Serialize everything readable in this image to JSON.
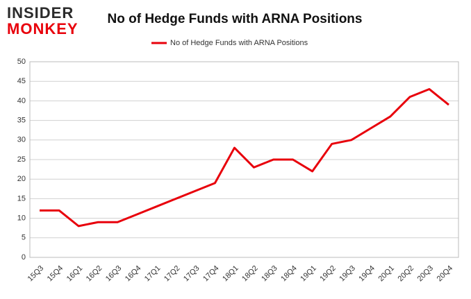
{
  "logo": {
    "line1": "INSIDER",
    "line2": "MONKEY"
  },
  "chart_data": {
    "type": "line",
    "title": "No of Hedge Funds with ARNA Positions",
    "categories": [
      "15Q3",
      "15Q4",
      "16Q1",
      "16Q2",
      "16Q3",
      "16Q4",
      "17Q1",
      "17Q2",
      "17Q3",
      "17Q4",
      "18Q1",
      "18Q2",
      "18Q3",
      "18Q4",
      "19Q1",
      "19Q2",
      "19Q3",
      "19Q4",
      "20Q1",
      "20Q2",
      "20Q3",
      "20Q4"
    ],
    "series": [
      {
        "name": "No of Hedge Funds with ARNA Positions",
        "color": "#e8000b",
        "values": [
          12,
          12,
          8,
          9,
          9,
          11,
          13,
          15,
          17,
          19,
          28,
          23,
          25,
          25,
          22,
          29,
          30,
          33,
          36,
          41,
          43,
          39
        ]
      }
    ],
    "ylim": [
      0,
      50
    ],
    "yticks": [
      0,
      5,
      10,
      15,
      20,
      25,
      30,
      35,
      40,
      45,
      50
    ],
    "grid": true,
    "legend": "top"
  }
}
